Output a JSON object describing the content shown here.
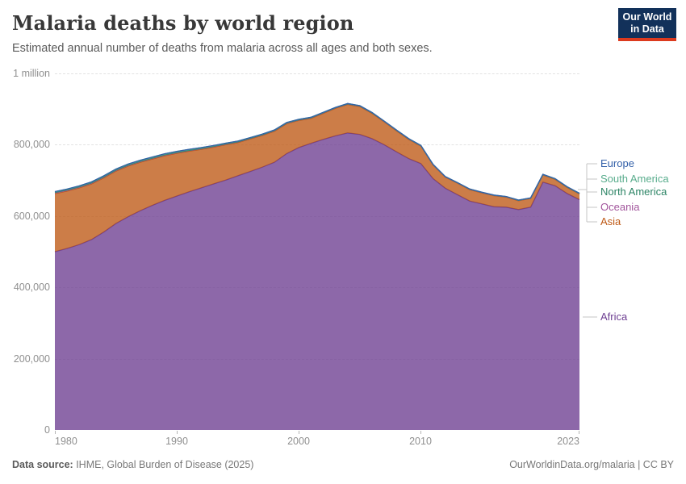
{
  "header": {
    "title": "Malaria deaths by world region",
    "subtitle": "Estimated annual number of deaths from malaria across all ages and both sexes."
  },
  "branding": {
    "logo_line1": "Our World",
    "logo_line2": "in Data",
    "logo_bg": "#12315a",
    "logo_accent": "#dc3a1e"
  },
  "y_axis": {
    "labels": [
      "1 million",
      "800,000",
      "600,000",
      "400,000",
      "200,000",
      "0"
    ],
    "values": [
      1000000,
      800000,
      600000,
      400000,
      200000,
      0
    ]
  },
  "x_axis": {
    "labels": [
      "1980",
      "1990",
      "2000",
      "2010",
      "2023"
    ],
    "values": [
      1980,
      1990,
      2000,
      2010,
      2023
    ]
  },
  "legend": {
    "items": [
      {
        "label": "Europe",
        "color": "#3360A9"
      },
      {
        "label": "South America",
        "color": "#58AC8C"
      },
      {
        "label": "North America",
        "color": "#2C8465"
      },
      {
        "label": "Oceania",
        "color": "#A2559C"
      },
      {
        "label": "Asia",
        "color": "#BE5915"
      },
      {
        "label": "Africa",
        "color": "#6D3E91"
      }
    ]
  },
  "chart_data": {
    "type": "area",
    "stacked": true,
    "stack_order": "bottom_to_top",
    "title": "Malaria deaths by world region",
    "xlabel": "",
    "ylabel": "",
    "xlim": [
      1980,
      2023
    ],
    "ylim": [
      0,
      1000000
    ],
    "grid": true,
    "legend_position": "right",
    "years": [
      1980,
      1981,
      1982,
      1983,
      1984,
      1985,
      1986,
      1987,
      1988,
      1989,
      1990,
      1991,
      1992,
      1993,
      1994,
      1995,
      1996,
      1997,
      1998,
      1999,
      2000,
      2001,
      2002,
      2003,
      2004,
      2005,
      2006,
      2007,
      2008,
      2009,
      2010,
      2011,
      2012,
      2013,
      2014,
      2015,
      2016,
      2017,
      2018,
      2019,
      2020,
      2021,
      2022,
      2023
    ],
    "series": [
      {
        "name": "Africa",
        "color": "#6D3E91",
        "values": [
          500000,
          509000,
          520000,
          534000,
          555000,
          579000,
          598000,
          615000,
          630000,
          644000,
          656000,
          668000,
          679000,
          690000,
          701000,
          713000,
          725000,
          737000,
          751000,
          775000,
          792000,
          804000,
          815000,
          825000,
          833000,
          829000,
          817000,
          800000,
          780000,
          761000,
          747000,
          705000,
          678000,
          660000,
          642000,
          634000,
          626000,
          625000,
          618000,
          625000,
          695000,
          685000,
          663000,
          646000
        ]
      },
      {
        "name": "Asia",
        "color": "#BE5915",
        "values": [
          163000,
          161000,
          159000,
          156000,
          152000,
          147000,
          142000,
          136000,
          130000,
          125000,
          120000,
          114000,
          108000,
          103000,
          99000,
          93000,
          91000,
          89000,
          87000,
          84000,
          76000,
          70000,
          73000,
          77000,
          80000,
          78000,
          71000,
          64000,
          59000,
          54000,
          49000,
          38000,
          31000,
          32000,
          32000,
          31000,
          31000,
          28000,
          25000,
          24000,
          20000,
          18000,
          17000,
          16000
        ]
      },
      {
        "name": "Oceania",
        "color": "#A2559C",
        "values": [
          2000,
          2000,
          2000,
          2000,
          1900,
          1900,
          1900,
          1800,
          1800,
          1800,
          1800,
          1700,
          1700,
          1700,
          1600,
          1600,
          1600,
          1500,
          1500,
          1500,
          1500,
          1400,
          1400,
          1400,
          1300,
          1300,
          1300,
          1200,
          1200,
          1200,
          1100,
          1100,
          1000,
          1000,
          1000,
          900,
          900,
          900,
          900,
          900,
          1000,
          1000,
          900,
          900
        ]
      },
      {
        "name": "North America",
        "color": "#2C8465",
        "values": [
          1200,
          1200,
          1100,
          1100,
          1000,
          1000,
          1000,
          900,
          900,
          900,
          800,
          800,
          800,
          700,
          700,
          700,
          600,
          600,
          600,
          500,
          500,
          500,
          500,
          400,
          400,
          400,
          400,
          300,
          300,
          300,
          300,
          300,
          300,
          300,
          300,
          300,
          300,
          300,
          300,
          300,
          300,
          300,
          300,
          300
        ]
      },
      {
        "name": "South America",
        "color": "#58AC8C",
        "values": [
          2200,
          2300,
          2400,
          2500,
          2600,
          2700,
          2800,
          2800,
          2900,
          2900,
          2800,
          2600,
          2400,
          2200,
          2000,
          1800,
          1600,
          1500,
          1400,
          1300,
          1200,
          1100,
          1000,
          900,
          900,
          800,
          800,
          700,
          700,
          600,
          600,
          600,
          500,
          500,
          500,
          500,
          500,
          500,
          500,
          500,
          500,
          500,
          500,
          500
        ]
      },
      {
        "name": "Europe",
        "color": "#3360A9",
        "values": [
          100,
          100,
          100,
          100,
          100,
          100,
          100,
          100,
          100,
          100,
          100,
          100,
          100,
          100,
          100,
          100,
          100,
          100,
          100,
          100,
          100,
          100,
          100,
          100,
          100,
          100,
          100,
          100,
          100,
          100,
          100,
          100,
          100,
          100,
          100,
          100,
          100,
          100,
          100,
          100,
          100,
          100,
          100,
          100
        ]
      }
    ]
  },
  "footer": {
    "source_label": "Data source:",
    "source_text": " IHME, Global Burden of Disease (2025)",
    "link": "OurWorldinData.org/malaria",
    "separator": " | ",
    "license": "CC BY"
  }
}
